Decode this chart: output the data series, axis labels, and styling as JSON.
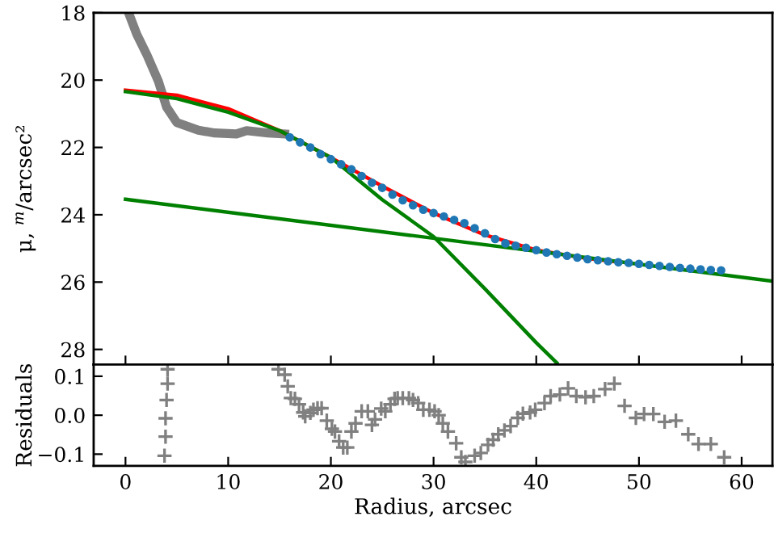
{
  "chart_data": [
    {
      "type": "line",
      "ylabel": "μ, $^{m}$/arcsec²",
      "xlim": [
        -3.1,
        63
      ],
      "xticks": [
        0,
        10,
        20,
        30,
        40,
        50,
        60
      ],
      "ylim": [
        28.45,
        18
      ],
      "yticks": [
        18,
        20,
        22,
        24,
        26,
        28
      ],
      "tick_labels": "y",
      "grid": false,
      "series": [
        {
          "color": "#808080",
          "x": [
            0.3,
            1.1,
            2.1,
            3.2,
            4.0,
            5.0,
            7.1,
            8.7,
            10.8,
            11.8,
            13.9,
            15.5
          ],
          "values": [
            18.0,
            18.64,
            19.26,
            20.03,
            20.8,
            21.26,
            21.49,
            21.57,
            21.6,
            21.5,
            21.57,
            21.6
          ]
        },
        {
          "type": "scatter",
          "color": "#1f77b4",
          "marker": "circle",
          "x": [
            16,
            17,
            18,
            19,
            20,
            21,
            22,
            23,
            24,
            25,
            26,
            27,
            28,
            29,
            30,
            31,
            32,
            33,
            34,
            35,
            36,
            37,
            38,
            39,
            40,
            41,
            42,
            43,
            44,
            45,
            46,
            47,
            48,
            49,
            50,
            51,
            52,
            53,
            54,
            55,
            56,
            57,
            58
          ],
          "values": [
            21.7,
            21.85,
            22.0,
            22.2,
            22.35,
            22.5,
            22.65,
            22.85,
            23.05,
            23.2,
            23.4,
            23.57,
            23.72,
            23.85,
            23.95,
            24.05,
            24.15,
            24.25,
            24.4,
            24.55,
            24.72,
            24.85,
            24.92,
            24.98,
            25.05,
            25.12,
            25.17,
            25.22,
            25.27,
            25.32,
            25.35,
            25.38,
            25.41,
            25.43,
            25.46,
            25.49,
            25.52,
            25.55,
            25.58,
            25.6,
            25.62,
            25.64,
            25.65
          ]
        },
        {
          "color": "#ff0000",
          "x": [
            0,
            5,
            10,
            15,
            20,
            25,
            30,
            35,
            40,
            45,
            48
          ],
          "values": [
            20.3,
            20.45,
            20.85,
            21.5,
            22.3,
            23.15,
            23.95,
            24.6,
            25.05,
            25.3,
            25.4
          ]
        },
        {
          "color": "#008000",
          "x": [
            0,
            5,
            10,
            15,
            20,
            25,
            30,
            35,
            40,
            42
          ],
          "values": [
            20.34,
            20.55,
            20.95,
            21.5,
            22.3,
            23.55,
            24.65,
            26.2,
            27.8,
            28.4
          ]
        },
        {
          "color": "#008000",
          "x": [
            0,
            63
          ],
          "values": [
            23.54,
            25.97
          ]
        }
      ]
    },
    {
      "type": "scatter",
      "xlabel": "Radius, arcsec",
      "ylabel": "Residuals",
      "xlim": [
        -3.1,
        63
      ],
      "xticks": [
        0,
        10,
        20,
        30,
        40,
        50,
        60
      ],
      "ylim": [
        -0.13,
        0.13
      ],
      "yticks": [
        {
          "value": -0.1,
          "label": "−0.1"
        },
        {
          "value": 0.0,
          "label": "0.0"
        },
        {
          "value": 0.1,
          "label": "0.1"
        }
      ],
      "grid": false,
      "series": [
        {
          "color": "#808080",
          "marker": "cross",
          "x": [
            4.1,
            4.1,
            4.0,
            3.9,
            3.9,
            3.8,
            14.9,
            15.5,
            15.8,
            16.1,
            16.5,
            16.9,
            17.3,
            17.5,
            18.0,
            18.3,
            18.7,
            19.1,
            19.6,
            20.1,
            20.4,
            20.8,
            21.2,
            21.6,
            22.0,
            22.4,
            23.0,
            23.6,
            24.0,
            24.3,
            24.9,
            25.3,
            25.8,
            26.2,
            26.5,
            27.0,
            27.6,
            28.0,
            28.5,
            29.0,
            29.6,
            30.1,
            30.5,
            30.9,
            31.4,
            32.2,
            32.7,
            33.1,
            34.0,
            34.6,
            35.3,
            35.8,
            36.3,
            36.9,
            37.5,
            38.2,
            38.7,
            39.4,
            39.9,
            40.8,
            41.4,
            42.3,
            43.1,
            43.9,
            44.8,
            45.6,
            46.7,
            47.6,
            48.6,
            49.7,
            50.5,
            51.4,
            52.5,
            53.6,
            54.8,
            55.8,
            57.0,
            58.3
          ],
          "values": [
            0.118,
            0.081,
            0.039,
            -0.008,
            -0.055,
            -0.104,
            0.118,
            0.104,
            0.074,
            0.044,
            0.042,
            0.028,
            0.007,
            -0.003,
            0.006,
            0.014,
            0.018,
            0.018,
            -0.014,
            -0.035,
            -0.042,
            -0.067,
            -0.083,
            -0.083,
            -0.042,
            -0.021,
            0.01,
            0.01,
            -0.025,
            -0.011,
            0.017,
            0.01,
            0.028,
            0.042,
            0.044,
            0.044,
            0.044,
            0.039,
            0.031,
            0.014,
            0.014,
            0.01,
            0.0,
            -0.021,
            -0.042,
            -0.072,
            -0.108,
            -0.12,
            -0.104,
            -0.097,
            -0.076,
            -0.063,
            -0.049,
            -0.039,
            -0.028,
            -0.007,
            0.004,
            0.007,
            0.014,
            0.031,
            0.049,
            0.053,
            0.069,
            0.049,
            0.046,
            0.049,
            0.067,
            0.081,
            0.024,
            -0.007,
            0.003,
            0.003,
            -0.017,
            -0.014,
            -0.049,
            -0.074,
            -0.074,
            -0.108
          ]
        }
      ]
    }
  ]
}
